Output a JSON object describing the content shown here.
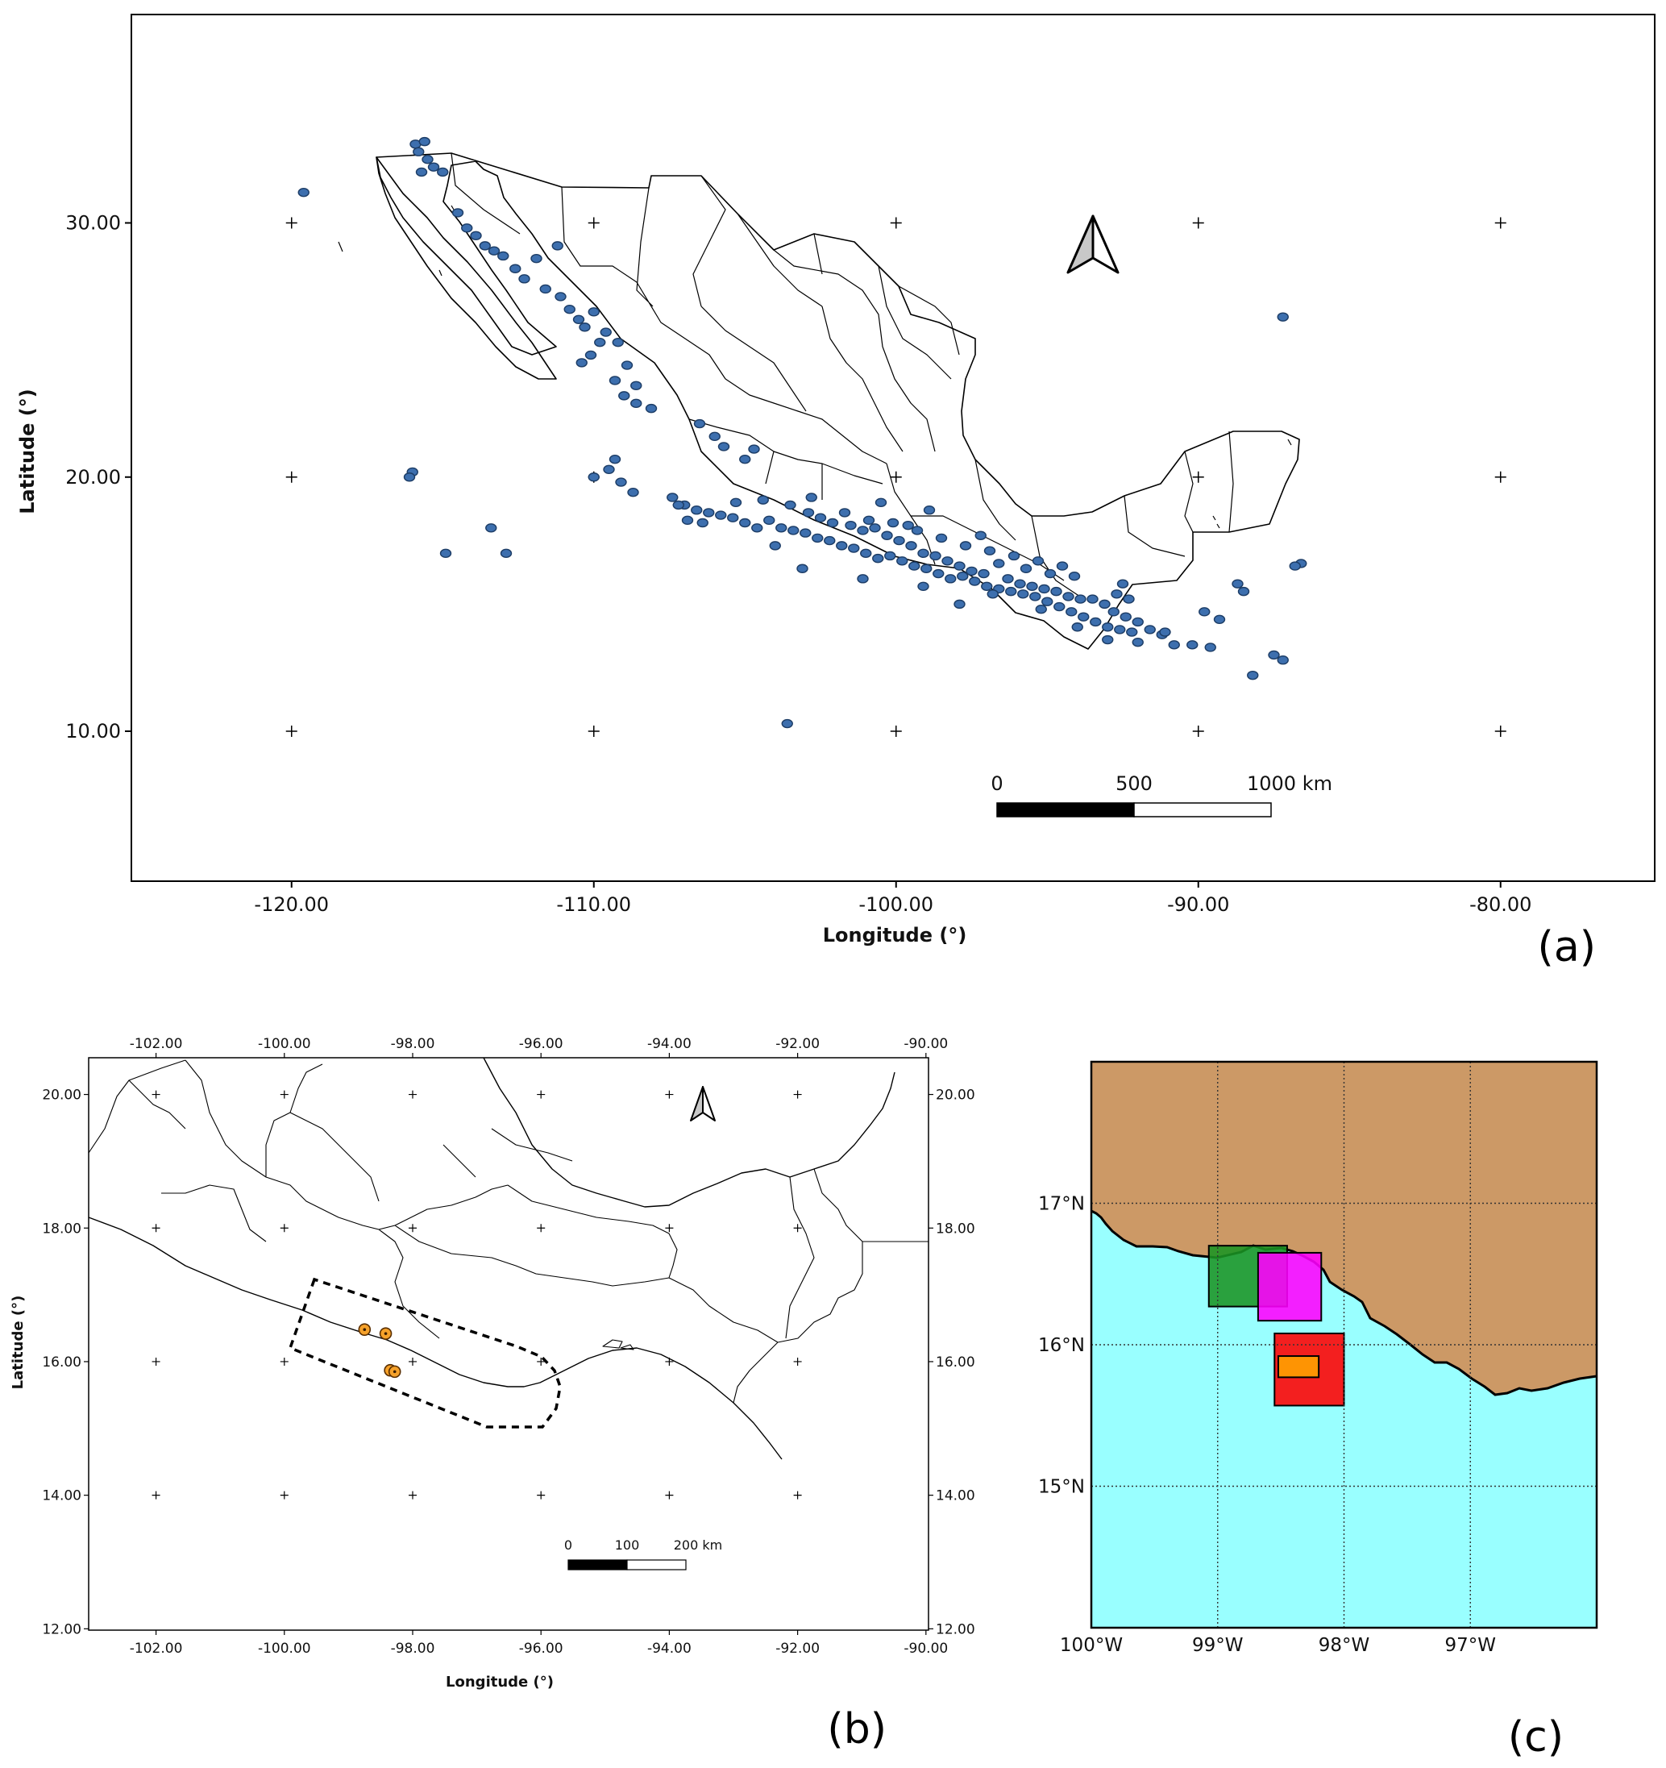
{
  "panels": {
    "a": {
      "tag": "(a)",
      "xlabel": "Longitude (°)",
      "ylabel": "Latitude (°)",
      "xlim": [
        -125.3,
        -74.9
      ],
      "ylim": [
        4.1,
        38.2
      ],
      "xticks": [
        "-120.00",
        "-110.00",
        "-100.00",
        "-90.00",
        "-80.00"
      ],
      "yticks": [
        "30.00",
        "20.00",
        "10.00"
      ],
      "scale_bar": {
        "labels": [
          "0",
          "500",
          "1000 km"
        ]
      },
      "marker_color": "#3d6fae"
    },
    "b": {
      "tag": "(b)",
      "xlabel": "Longitude (°)",
      "ylabel": "Latitude (°)",
      "xlim": [
        -103.05,
        -89.96
      ],
      "ylim": [
        11.98,
        20.55
      ],
      "xticks": [
        "-102.00",
        "-100.00",
        "-98.00",
        "-96.00",
        "-94.00",
        "-92.00",
        "-90.00"
      ],
      "yticks": [
        "20.00",
        "18.00",
        "16.00",
        "14.00",
        "12.00"
      ],
      "scale_bar": {
        "labels": [
          "0",
          "100",
          "200 km"
        ]
      },
      "marker_color": "#f5a12a"
    },
    "c": {
      "tag": "(c)",
      "xlim": [
        -100.0,
        -96.0
      ],
      "ylim": [
        14.0,
        18.0
      ],
      "xticks": [
        "100°W",
        "99°W",
        "98°W",
        "97°W"
      ],
      "yticks": [
        "17°N",
        "16°N",
        "15°N"
      ],
      "land_color": "#cc9966",
      "sea_color": "#99ffff",
      "boxes": [
        {
          "color": "#1a9423",
          "lon": [
            -99.07,
            -98.45
          ],
          "lat": [
            16.27,
            16.7
          ]
        },
        {
          "color": "#ff00ff",
          "lon": [
            -98.68,
            -98.18
          ],
          "lat": [
            16.17,
            16.65
          ]
        },
        {
          "color": "#ff0000",
          "lon": [
            -98.55,
            -98.0
          ],
          "lat": [
            15.57,
            16.08
          ]
        },
        {
          "color": "#ffa500",
          "lon": [
            -98.52,
            -98.2
          ],
          "lat": [
            15.77,
            15.92
          ]
        }
      ]
    }
  },
  "chart_data": [
    {
      "type": "scatter",
      "title": "",
      "xlabel": "Longitude (°)",
      "ylabel": "Latitude (°)",
      "xlim": [
        -125.3,
        -74.9
      ],
      "ylim": [
        4.1,
        38.2
      ],
      "grid": "crosses",
      "series": [
        {
          "points": [
            [
              -115.9,
              33.1
            ],
            [
              -115.6,
              33.2
            ],
            [
              -115.8,
              32.8
            ],
            [
              -115.5,
              32.5
            ],
            [
              -115.3,
              32.2
            ],
            [
              -115.0,
              32.0
            ],
            [
              -115.7,
              32.0
            ],
            [
              -119.6,
              31.2
            ],
            [
              -114.5,
              30.4
            ],
            [
              -114.2,
              29.8
            ],
            [
              -113.9,
              29.5
            ],
            [
              -113.6,
              29.1
            ],
            [
              -113.3,
              28.9
            ],
            [
              -113.0,
              28.7
            ],
            [
              -112.6,
              28.2
            ],
            [
              -112.3,
              27.8
            ],
            [
              -111.2,
              29.1
            ],
            [
              -111.9,
              28.6
            ],
            [
              -111.6,
              27.4
            ],
            [
              -111.1,
              27.1
            ],
            [
              -110.8,
              26.6
            ],
            [
              -110.5,
              26.2
            ],
            [
              -110.3,
              25.9
            ],
            [
              -110.0,
              26.5
            ],
            [
              -109.6,
              25.7
            ],
            [
              -109.2,
              25.3
            ],
            [
              -109.8,
              25.3
            ],
            [
              -110.1,
              24.8
            ],
            [
              -110.4,
              24.5
            ],
            [
              -108.9,
              24.4
            ],
            [
              -109.3,
              23.8
            ],
            [
              -108.6,
              23.6
            ],
            [
              -109.0,
              23.2
            ],
            [
              -108.6,
              22.9
            ],
            [
              -108.1,
              22.7
            ],
            [
              -106.5,
              22.1
            ],
            [
              -106.0,
              21.6
            ],
            [
              -105.7,
              21.2
            ],
            [
              -104.7,
              21.1
            ],
            [
              -105.0,
              20.7
            ],
            [
              -116.0,
              20.2
            ],
            [
              -116.1,
              20.0
            ],
            [
              -113.4,
              18.0
            ],
            [
              -112.9,
              17.0
            ],
            [
              -114.9,
              17.0
            ],
            [
              -110.0,
              20.0
            ],
            [
              -109.3,
              20.7
            ],
            [
              -109.5,
              20.3
            ],
            [
              -109.1,
              19.8
            ],
            [
              -108.7,
              19.4
            ],
            [
              -103.6,
              10.3
            ],
            [
              -107.4,
              19.2
            ],
            [
              -107.0,
              18.9
            ],
            [
              -106.6,
              18.7
            ],
            [
              -106.2,
              18.6
            ],
            [
              -105.8,
              18.5
            ],
            [
              -105.4,
              18.4
            ],
            [
              -105.0,
              18.2
            ],
            [
              -104.6,
              18.0
            ],
            [
              -104.2,
              18.3
            ],
            [
              -103.8,
              18.0
            ],
            [
              -103.4,
              17.9
            ],
            [
              -103.0,
              17.8
            ],
            [
              -102.6,
              17.6
            ],
            [
              -102.2,
              17.5
            ],
            [
              -101.8,
              17.3
            ],
            [
              -101.4,
              17.2
            ],
            [
              -101.0,
              17.0
            ],
            [
              -100.6,
              16.8
            ],
            [
              -100.2,
              16.9
            ],
            [
              -99.8,
              16.7
            ],
            [
              -99.4,
              16.5
            ],
            [
              -99.0,
              16.4
            ],
            [
              -98.6,
              16.2
            ],
            [
              -98.2,
              16.0
            ],
            [
              -97.8,
              16.1
            ],
            [
              -97.4,
              15.9
            ],
            [
              -97.0,
              15.7
            ],
            [
              -96.6,
              15.6
            ],
            [
              -96.2,
              15.5
            ],
            [
              -95.8,
              15.4
            ],
            [
              -95.4,
              15.3
            ],
            [
              -95.0,
              15.1
            ],
            [
              -94.6,
              14.9
            ],
            [
              -94.2,
              14.7
            ],
            [
              -93.8,
              14.5
            ],
            [
              -93.4,
              14.3
            ],
            [
              -93.0,
              14.1
            ],
            [
              -92.6,
              14.0
            ],
            [
              -92.2,
              13.9
            ],
            [
              -92.8,
              14.7
            ],
            [
              -92.4,
              14.5
            ],
            [
              -92.0,
              14.3
            ],
            [
              -91.6,
              14.0
            ],
            [
              -91.2,
              13.8
            ],
            [
              -93.5,
              15.2
            ],
            [
              -93.1,
              15.0
            ],
            [
              -92.7,
              15.4
            ],
            [
              -92.3,
              15.2
            ],
            [
              -101.5,
              18.1
            ],
            [
              -101.1,
              17.9
            ],
            [
              -100.7,
              18.0
            ],
            [
              -100.3,
              17.7
            ],
            [
              -99.9,
              17.5
            ],
            [
              -99.5,
              17.3
            ],
            [
              -99.1,
              17.0
            ],
            [
              -98.7,
              16.9
            ],
            [
              -98.3,
              16.7
            ],
            [
              -97.9,
              16.5
            ],
            [
              -97.5,
              16.3
            ],
            [
              -97.1,
              16.2
            ],
            [
              -96.3,
              16.0
            ],
            [
              -95.9,
              15.8
            ],
            [
              -95.5,
              15.7
            ],
            [
              -95.1,
              15.6
            ],
            [
              -94.7,
              15.5
            ],
            [
              -94.3,
              15.3
            ],
            [
              -93.9,
              15.2
            ],
            [
              -102.9,
              18.6
            ],
            [
              -102.5,
              18.4
            ],
            [
              -102.1,
              18.2
            ],
            [
              -101.7,
              18.6
            ],
            [
              -100.9,
              18.3
            ],
            [
              -100.1,
              18.2
            ],
            [
              -99.3,
              17.9
            ],
            [
              -98.5,
              17.6
            ],
            [
              -97.7,
              17.3
            ],
            [
              -96.9,
              17.1
            ],
            [
              -96.1,
              16.9
            ],
            [
              -95.3,
              16.7
            ],
            [
              -94.5,
              16.5
            ],
            [
              -103.5,
              18.9
            ],
            [
              -104.0,
              17.3
            ],
            [
              -103.1,
              16.4
            ],
            [
              -101.1,
              16.0
            ],
            [
              -99.1,
              15.7
            ],
            [
              -97.9,
              15.0
            ],
            [
              -96.8,
              15.4
            ],
            [
              -95.2,
              14.8
            ],
            [
              -94.0,
              14.1
            ],
            [
              -93.0,
              13.6
            ],
            [
              -92.0,
              13.5
            ],
            [
              -90.8,
              13.4
            ],
            [
              -90.2,
              13.4
            ],
            [
              -89.6,
              13.3
            ],
            [
              -89.8,
              14.7
            ],
            [
              -89.3,
              14.4
            ],
            [
              -88.5,
              15.5
            ],
            [
              -88.7,
              15.8
            ],
            [
              -88.2,
              12.2
            ],
            [
              -87.5,
              13.0
            ],
            [
              -87.2,
              12.8
            ],
            [
              -86.6,
              16.6
            ],
            [
              -86.8,
              16.5
            ],
            [
              -87.2,
              26.3
            ],
            [
              -91.1,
              13.9
            ],
            [
              -92.5,
              15.8
            ],
            [
              -97.2,
              17.7
            ],
            [
              -99.6,
              18.1
            ],
            [
              -98.9,
              18.7
            ],
            [
              -100.5,
              19.0
            ],
            [
              -102.8,
              19.2
            ],
            [
              -105.3,
              19.0
            ],
            [
              -107.2,
              18.9
            ],
            [
              -106.9,
              18.3
            ],
            [
              -106.4,
              18.2
            ],
            [
              -104.4,
              19.1
            ],
            [
              -96.6,
              16.6
            ],
            [
              -95.7,
              16.4
            ],
            [
              -94.9,
              16.2
            ],
            [
              -94.1,
              16.1
            ]
          ]
        }
      ]
    },
    {
      "type": "scatter",
      "title": "",
      "xlabel": "Longitude (°)",
      "ylabel": "Latitude (°)",
      "xlim": [
        -103.05,
        -89.96
      ],
      "ylim": [
        11.98,
        20.55
      ],
      "grid": "crosses",
      "series": [
        {
          "points": [
            [
              -98.75,
              16.48
            ],
            [
              -98.42,
              16.42
            ],
            [
              -98.35,
              15.87
            ],
            [
              -98.28,
              15.85
            ]
          ]
        }
      ]
    },
    {
      "type": "map",
      "title": "",
      "xlim": [
        -100.0,
        -96.0
      ],
      "ylim": [
        14.0,
        18.0
      ],
      "grid": true,
      "rectangles": [
        {
          "lon": [
            -99.07,
            -98.45
          ],
          "lat": [
            16.27,
            16.7
          ]
        },
        {
          "lon": [
            -98.68,
            -98.18
          ],
          "lat": [
            16.17,
            16.65
          ]
        },
        {
          "lon": [
            -98.55,
            -98.0
          ],
          "lat": [
            15.57,
            16.08
          ]
        },
        {
          "lon": [
            -98.52,
            -98.2
          ],
          "lat": [
            15.77,
            15.92
          ]
        }
      ]
    }
  ]
}
